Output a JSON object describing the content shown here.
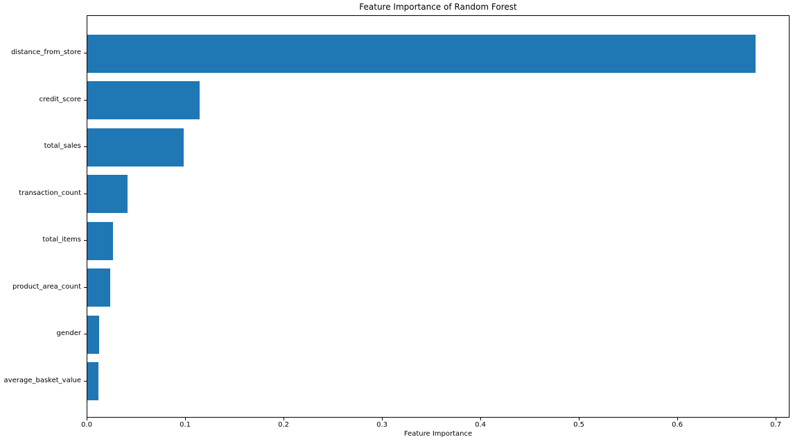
{
  "chart_data": {
    "type": "bar",
    "orientation": "horizontal",
    "title": "Feature Importance of Random Forest",
    "xlabel": "Feature Importance",
    "ylabel": "",
    "categories": [
      "distance_from_store",
      "credit_score",
      "total_sales",
      "transaction_count",
      "total_items",
      "product_area_count",
      "gender",
      "average_basket_value"
    ],
    "values": [
      0.68,
      0.114,
      0.098,
      0.041,
      0.026,
      0.023,
      0.012,
      0.011
    ],
    "xlim": [
      0,
      0.714
    ],
    "xticks": [
      "0.0",
      "0.1",
      "0.2",
      "0.3",
      "0.4",
      "0.5",
      "0.6",
      "0.7"
    ],
    "bar_color": "#1f77b4",
    "grid": false,
    "legend": null
  }
}
